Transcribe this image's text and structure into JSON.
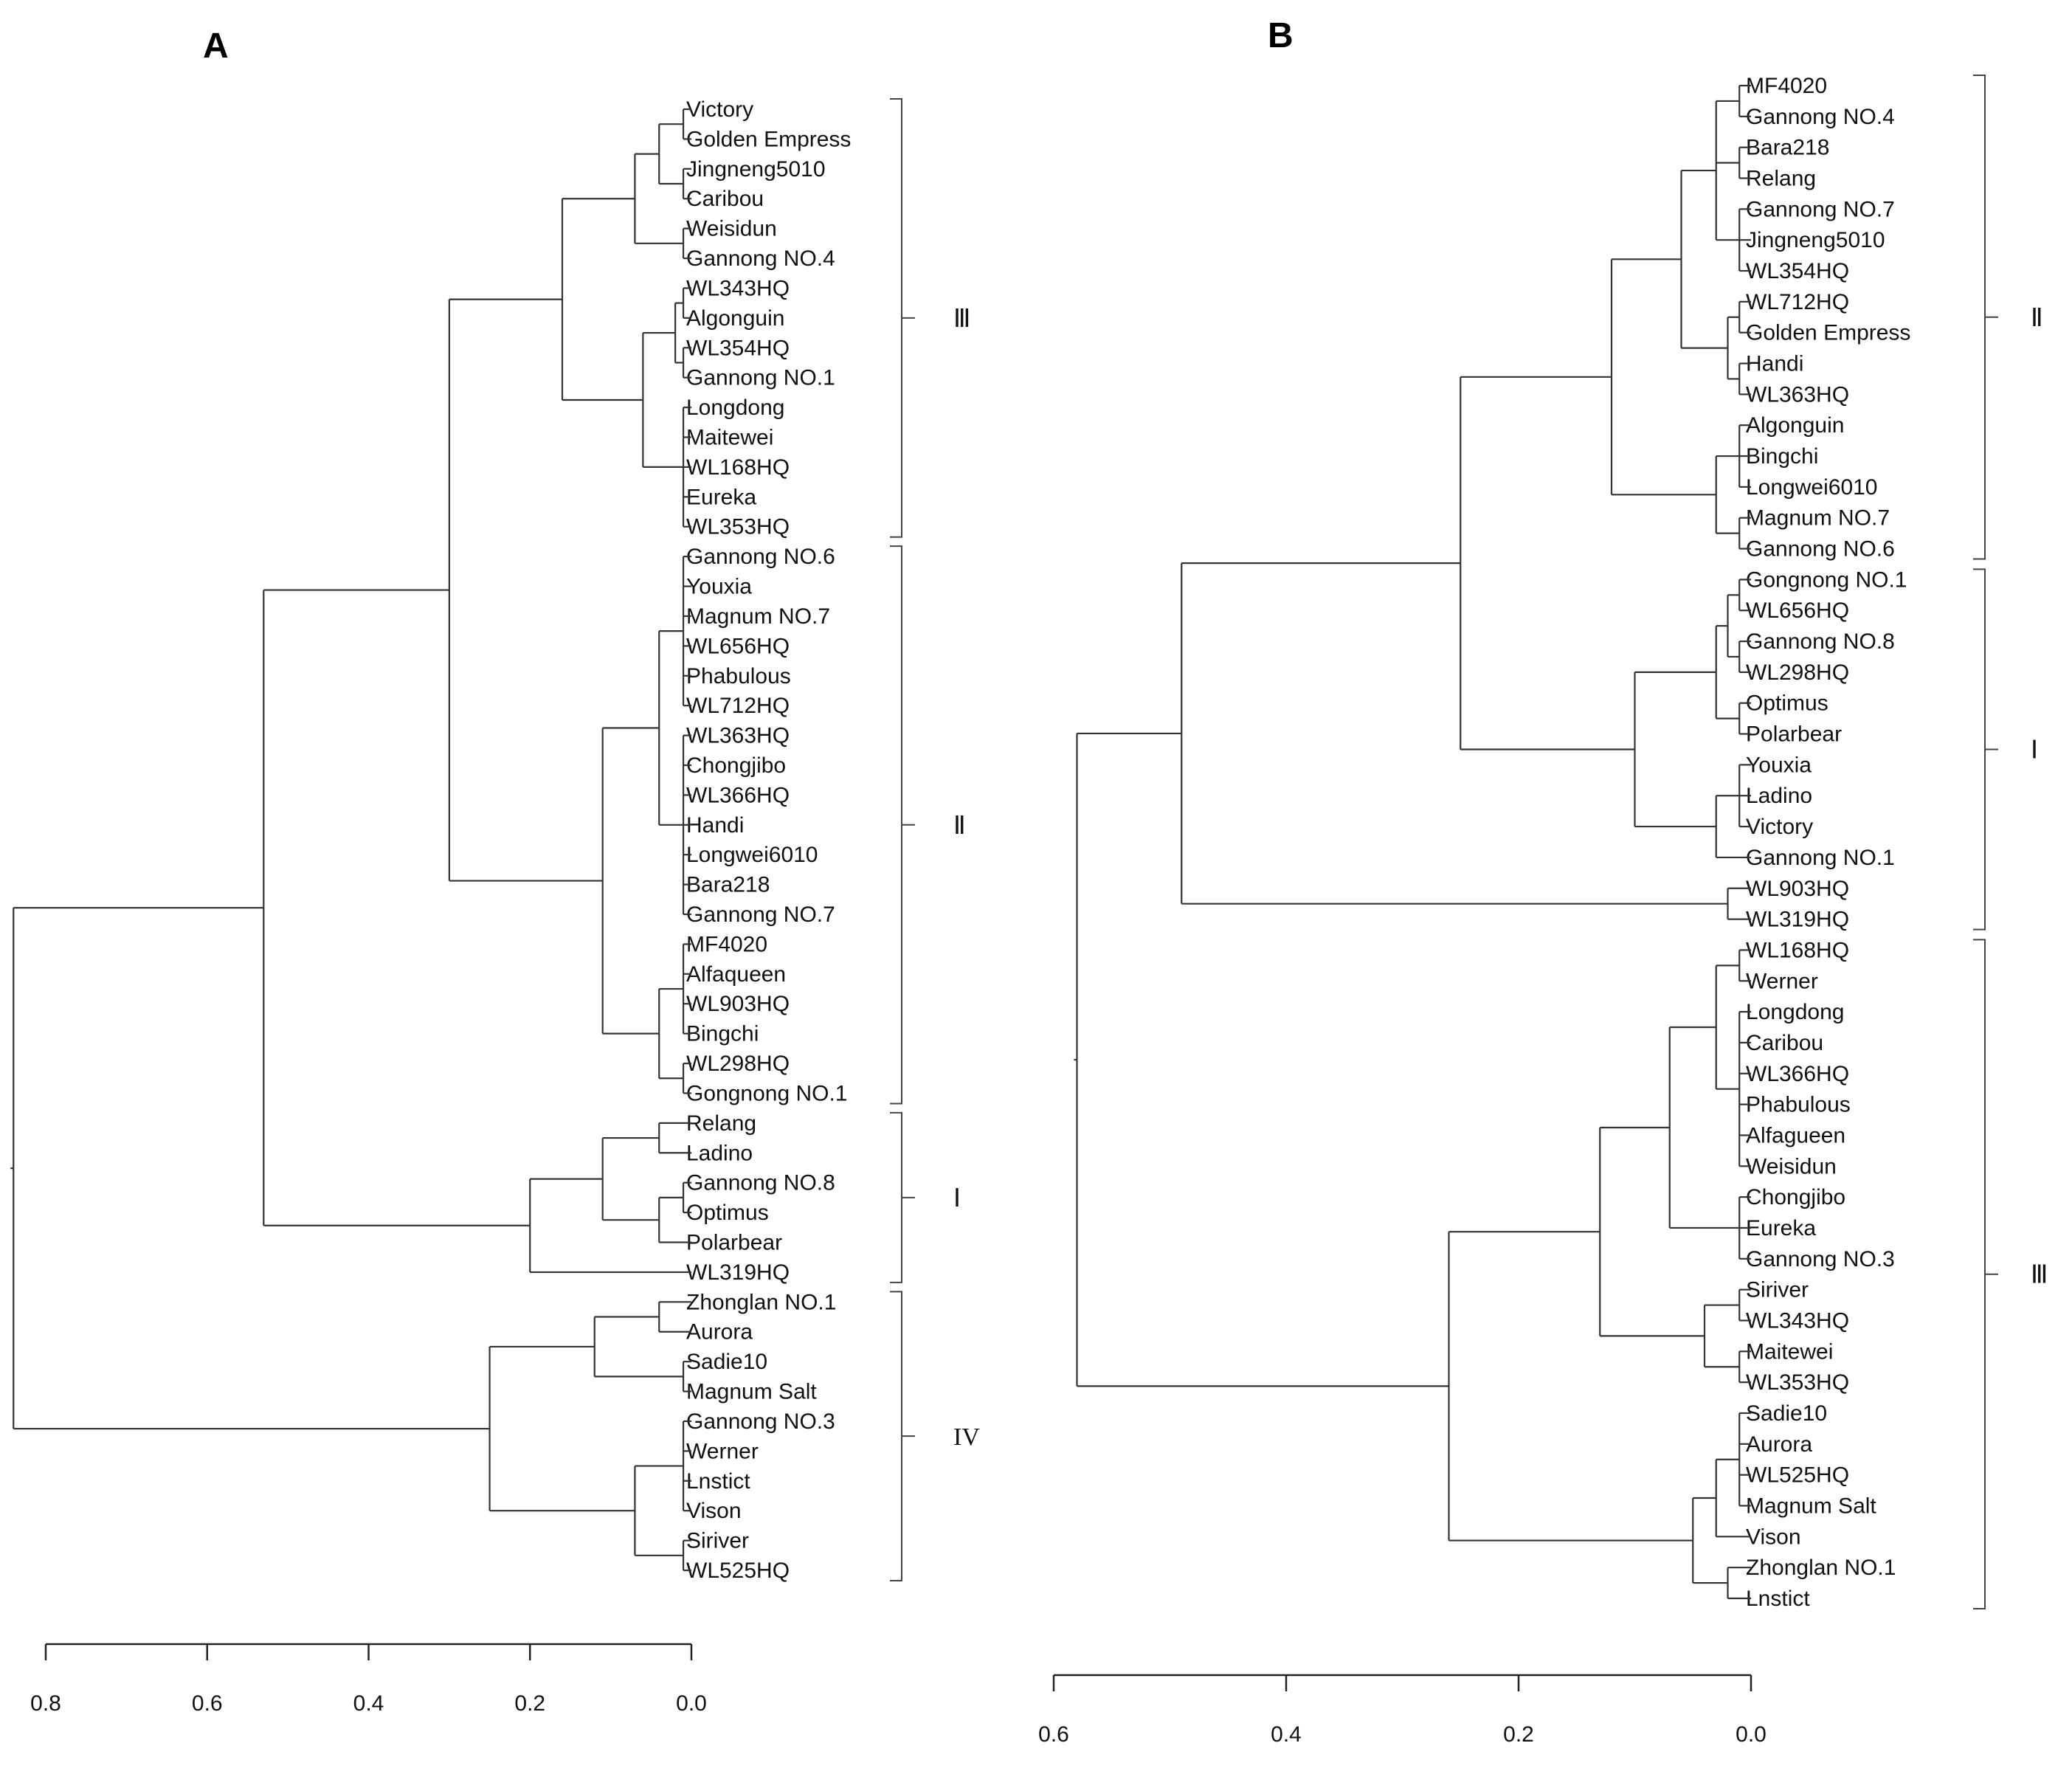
{
  "panels": [
    {
      "id": "A",
      "title": "A",
      "leaves": [
        "Victory",
        "Golden Empress",
        "Jingneng5010",
        "Caribou",
        "Weisidun",
        "Gannong NO.4",
        "WL343HQ",
        "Algonguin",
        "WL354HQ",
        "Gannong NO.1",
        "Longdong",
        "Maitewei",
        "WL168HQ",
        "Eureka",
        "WL353HQ",
        "Gannong NO.6",
        "Youxia",
        "Magnum NO.7",
        "WL656HQ",
        "Phabulous",
        "WL712HQ",
        "WL363HQ",
        "Chongjibo",
        "WL366HQ",
        "Handi",
        "Longwei6010",
        "Bara218",
        "Gannong NO.7",
        "MF4020",
        "Alfaqueen",
        "WL903HQ",
        "Bingchi",
        "WL298HQ",
        "Gongnong NO.1",
        "Relang",
        "Ladino",
        "Gannong NO.8",
        "Optimus",
        "Polarbear",
        "WL319HQ",
        "Zhonglan NO.1",
        "Aurora",
        "Sadie10",
        "Magnum Salt",
        "Gannong NO.3",
        "Werner",
        "Lnstict",
        "Vison",
        "Siriver",
        "WL525HQ"
      ],
      "groups": [
        {
          "label": "Ⅲ",
          "first": 0,
          "last": 14
        },
        {
          "label": "Ⅱ",
          "first": 15,
          "last": 33
        },
        {
          "label": "Ⅰ",
          "first": 34,
          "last": 39
        },
        {
          "label": "IV",
          "first": 40,
          "last": 49
        }
      ],
      "tree": {
        "h": 0.84,
        "c": [
          {
            "h": 0.53,
            "c": [
              {
                "h": 0.3,
                "c": [
                  {
                    "h": 0.16,
                    "c": [
                      {
                        "h": 0.07,
                        "c": [
                          {
                            "h": 0.04,
                            "c": [
                              {
                                "h": 0.01,
                                "c": [
                                  0,
                                  1
                                ]
                              },
                              {
                                "h": 0.01,
                                "c": [
                                  2,
                                  3
                                ]
                              }
                            ]
                          },
                          {
                            "h": 0.01,
                            "c": [
                              4,
                              5
                            ]
                          }
                        ]
                      },
                      {
                        "h": 0.06,
                        "c": [
                          {
                            "h": 0.02,
                            "c": [
                              {
                                "h": 0.01,
                                "c": [
                                  6,
                                  7
                                ]
                              },
                              {
                                "h": 0.01,
                                "c": [
                                  8,
                                  9
                                ]
                              }
                            ]
                          },
                          {
                            "h": 0.01,
                            "c": [
                              10,
                              11,
                              12,
                              13,
                              14
                            ]
                          }
                        ]
                      }
                    ]
                  },
                  {
                    "h": 0.11,
                    "c": [
                      {
                        "h": 0.04,
                        "c": [
                          {
                            "h": 0.01,
                            "c": [
                              15,
                              16,
                              17,
                              18,
                              19,
                              20
                            ]
                          },
                          {
                            "h": 0.01,
                            "c": [
                              21,
                              22,
                              23,
                              24,
                              25,
                              26,
                              27
                            ]
                          }
                        ]
                      },
                      {
                        "h": 0.04,
                        "c": [
                          {
                            "h": 0.01,
                            "c": [
                              28,
                              29,
                              30,
                              31
                            ]
                          },
                          {
                            "h": 0.01,
                            "c": [
                              32,
                              33
                            ]
                          }
                        ]
                      }
                    ]
                  }
                ]
              },
              {
                "h": 0.2,
                "c": [
                  {
                    "h": 0.11,
                    "c": [
                      {
                        "h": 0.04,
                        "c": [
                          34,
                          35
                        ]
                      },
                      {
                        "h": 0.04,
                        "c": [
                          {
                            "h": 0.01,
                            "c": [
                              36,
                              37
                            ]
                          },
                          38
                        ]
                      }
                    ]
                  },
                  39
                ]
              }
            ]
          },
          {
            "h": 0.25,
            "c": [
              {
                "h": 0.12,
                "c": [
                  {
                    "h": 0.04,
                    "c": [
                      40,
                      41
                    ]
                  },
                  {
                    "h": 0.01,
                    "c": [
                      42,
                      43
                    ]
                  }
                ]
              },
              {
                "h": 0.07,
                "c": [
                  {
                    "h": 0.01,
                    "c": [
                      44,
                      45,
                      46,
                      47
                    ]
                  },
                  {
                    "h": 0.01,
                    "c": [
                      48,
                      49
                    ]
                  }
                ]
              }
            ]
          }
        ]
      },
      "axis": {
        "min": 0.0,
        "max": 0.8,
        "ticks": [
          0.8,
          0.6,
          0.4,
          0.2,
          0.0
        ],
        "tick_labels": [
          "0.8",
          "0.6",
          "0.4",
          "0.2",
          "0.0"
        ]
      }
    },
    {
      "id": "B",
      "title": "B",
      "leaves": [
        "MF4020",
        "Gannong NO.4",
        "Bara218",
        "Relang",
        "Gannong NO.7",
        "Jingneng5010",
        "WL354HQ",
        "WL712HQ",
        "Golden Empress",
        "Handi",
        "WL363HQ",
        "Algonguin",
        "Bingchi",
        "Longwei6010",
        "Magnum NO.7",
        "Gannong NO.6",
        "Gongnong NO.1",
        "WL656HQ",
        "Gannong NO.8",
        "WL298HQ",
        "Optimus",
        "Polarbear",
        "Youxia",
        "Ladino",
        "Victory",
        "Gannong NO.1",
        "WL903HQ",
        "WL319HQ",
        "WL168HQ",
        "Werner",
        "Longdong",
        "Caribou",
        "WL366HQ",
        "Phabulous",
        "Alfagueen",
        "Weisidun",
        "Chongjibo",
        "Eureka",
        "Gannong NO.3",
        "Siriver",
        "WL343HQ",
        "Maitewei",
        "WL353HQ",
        "Sadie10",
        "Aurora",
        "WL525HQ",
        "Magnum Salt",
        "Vison",
        "Zhonglan NO.1",
        "Lnstict"
      ],
      "groups": [
        {
          "label": "Ⅱ",
          "first": 0,
          "last": 15
        },
        {
          "label": "Ⅰ",
          "first": 16,
          "last": 27
        },
        {
          "label": "Ⅲ",
          "first": 28,
          "last": 49
        }
      ],
      "tree": {
        "h": 0.58,
        "c": [
          {
            "h": 0.49,
            "c": [
              {
                "h": 0.25,
                "c": [
                  {
                    "h": 0.12,
                    "c": [
                      {
                        "h": 0.06,
                        "c": [
                          {
                            "h": 0.03,
                            "c": [
                              {
                                "h": 0.01,
                                "c": [
                                  0,
                                  1
                                ]
                              },
                              {
                                "h": 0.01,
                                "c": [
                                  2,
                                  3
                                ]
                              },
                              {
                                "h": 0.01,
                                "c": [
                                  4,
                                  5,
                                  6
                                ]
                              }
                            ]
                          },
                          {
                            "h": 0.02,
                            "c": [
                              {
                                "h": 0.01,
                                "c": [
                                  7,
                                  8
                                ]
                              },
                              {
                                "h": 0.01,
                                "c": [
                                  9,
                                  10
                                ]
                              }
                            ]
                          }
                        ]
                      },
                      {
                        "h": 0.03,
                        "c": [
                          {
                            "h": 0.01,
                            "c": [
                              11,
                              12,
                              13
                            ]
                          },
                          {
                            "h": 0.01,
                            "c": [
                              14,
                              15
                            ]
                          }
                        ]
                      }
                    ]
                  },
                  {
                    "h": 0.1,
                    "c": [
                      {
                        "h": 0.03,
                        "c": [
                          {
                            "h": 0.02,
                            "c": [
                              {
                                "h": 0.01,
                                "c": [
                                  16,
                                  17
                                ]
                              },
                              {
                                "h": 0.01,
                                "c": [
                                  18,
                                  19
                                ]
                              }
                            ]
                          },
                          {
                            "h": 0.01,
                            "c": [
                              20,
                              21
                            ]
                          }
                        ]
                      },
                      {
                        "h": 0.03,
                        "c": [
                          {
                            "h": 0.01,
                            "c": [
                              22,
                              23,
                              24
                            ]
                          },
                          25
                        ]
                      }
                    ]
                  }
                ]
              },
              {
                "h": 0.02,
                "c": [
                  26,
                  27
                ]
              }
            ]
          },
          {
            "h": 0.26,
            "c": [
              {
                "h": 0.13,
                "c": [
                  {
                    "h": 0.07,
                    "c": [
                      {
                        "h": 0.03,
                        "c": [
                          {
                            "h": 0.01,
                            "c": [
                              28,
                              29
                            ]
                          },
                          {
                            "h": 0.01,
                            "c": [
                              30,
                              31,
                              32,
                              33,
                              34,
                              35
                            ]
                          }
                        ]
                      },
                      {
                        "h": 0.01,
                        "c": [
                          36,
                          37,
                          38
                        ]
                      }
                    ]
                  },
                  {
                    "h": 0.04,
                    "c": [
                      {
                        "h": 0.01,
                        "c": [
                          39,
                          40
                        ]
                      },
                      {
                        "h": 0.01,
                        "c": [
                          41,
                          42
                        ]
                      }
                    ]
                  }
                ]
              },
              {
                "h": 0.05,
                "c": [
                  {
                    "h": 0.03,
                    "c": [
                      {
                        "h": 0.01,
                        "c": [
                          43,
                          44,
                          45,
                          46
                        ]
                      },
                      47
                    ]
                  },
                  {
                    "h": 0.02,
                    "c": [
                      48,
                      49
                    ]
                  }
                ]
              }
            ]
          }
        ]
      },
      "axis": {
        "min": 0.0,
        "max": 0.6,
        "ticks": [
          0.6,
          0.4,
          0.2,
          0.0
        ],
        "tick_labels": [
          "0.6",
          "0.4",
          "0.2",
          "0.0"
        ]
      }
    }
  ]
}
